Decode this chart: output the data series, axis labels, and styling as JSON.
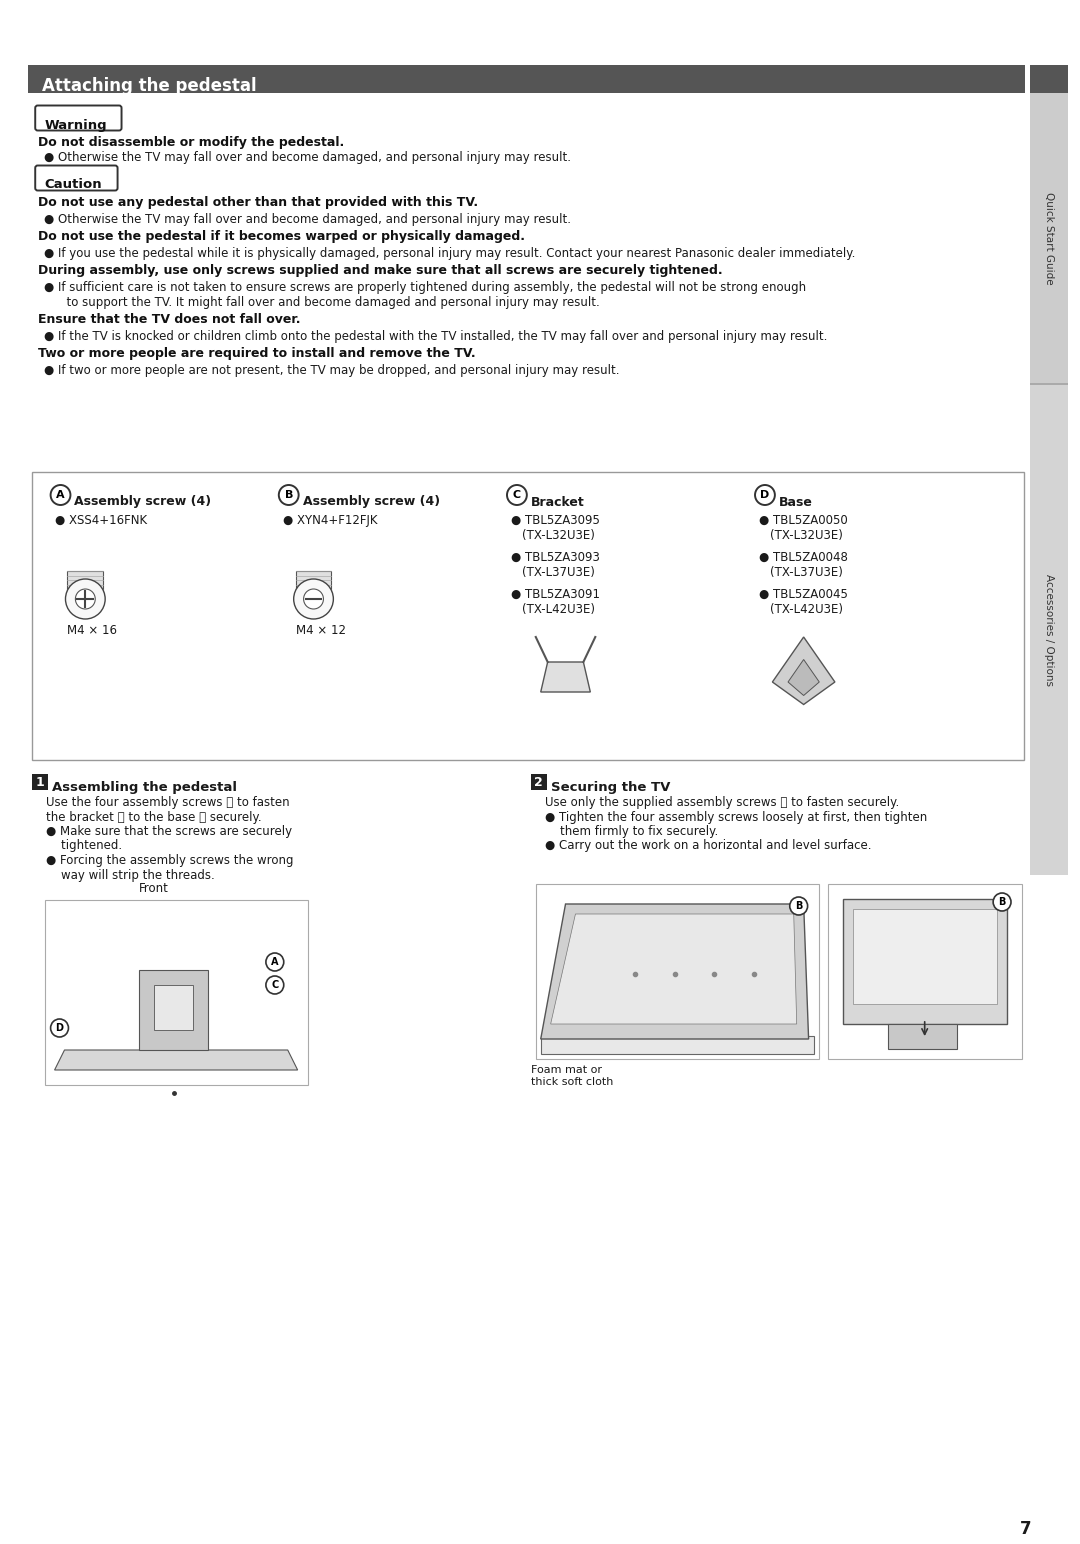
{
  "title": "Attaching the pedestal",
  "title_bg": "#555555",
  "title_color": "#ffffff",
  "page_bg": "#ffffff",
  "text_color": "#1a1a1a",
  "sidebar_bg": "#555555",
  "sidebar_text": "Quick Start Guide",
  "sidebar_text2": "Accessories / Options",
  "warning_label": "Warning",
  "warning_bold": "Do not disassemble or modify the pedestal.",
  "warning_bullet": "Otherwise the TV may fall over and become damaged, and personal injury may result.",
  "caution_label": "Caution",
  "caution_items": [
    {
      "bold": "Do not use any pedestal other than that provided with this TV.",
      "bullet": "Otherwise the TV may fall over and become damaged, and personal injury may result."
    },
    {
      "bold": "Do not use the pedestal if it becomes warped or physically damaged.",
      "bullet": "If you use the pedestal while it is physically damaged, personal injury may result. Contact your nearest Panasonic dealer immediately."
    },
    {
      "bold": "During assembly, use only screws supplied and make sure that all screws are securely tightened.",
      "bullet": "If sufficient care is not taken to ensure screws are properly tightened during assembly, the pedestal will not be strong enough\n   to support the TV. It might fall over and become damaged and personal injury may result."
    },
    {
      "bold": "Ensure that the TV does not fall over.",
      "bullet": "If the TV is knocked or children climb onto the pedestal with the TV installed, the TV may fall over and personal injury may result."
    },
    {
      "bold": "Two or more people are required to install and remove the TV.",
      "bullet": "If two or more people are not present, the TV may be dropped, and personal injury may result."
    }
  ],
  "parts": [
    {
      "letter": "A",
      "title": "Assembly screw (4)",
      "bullet": "XSS4+16FNK",
      "label": "M4 × 16"
    },
    {
      "letter": "B",
      "title": "Assembly screw (4)",
      "bullet": "XYN4+F12FJK",
      "label": "M4 × 12"
    },
    {
      "letter": "C",
      "title": "Bracket",
      "bullets": [
        "TBL5ZA3095",
        "(TX-L32U3E)",
        "TBL5ZA3093",
        "(TX-L37U3E)",
        "TBL5ZA3091",
        "(TX-L42U3E)"
      ]
    },
    {
      "letter": "D",
      "title": "Base",
      "bullets": [
        "TBL5ZA0050",
        "(TX-L32U3E)",
        "TBL5ZA0048",
        "(TX-L37U3E)",
        "TBL5ZA0045",
        "(TX-L42U3E)"
      ]
    }
  ],
  "step1_title": "Assembling the pedestal",
  "step1_lines": [
    "Use the four assembly screws Ⓐ to fasten",
    "the bracket Ⓒ to the base Ⓓ securely.",
    "● Make sure that the screws are securely",
    "    tightened.",
    "● Forcing the assembly screws the wrong",
    "    way will strip the threads."
  ],
  "step2_title": "Securing the TV",
  "step2_lines": [
    "Use only the supplied assembly screws Ⓑ to fasten securely.",
    "● Tighten the four assembly screws loosely at first, then tighten",
    "    them firmly to fix securely.",
    "● Carry out the work on a horizontal and level surface."
  ],
  "step2_sublabel": "Foam mat or\nthick soft cloth",
  "page_number": "7"
}
